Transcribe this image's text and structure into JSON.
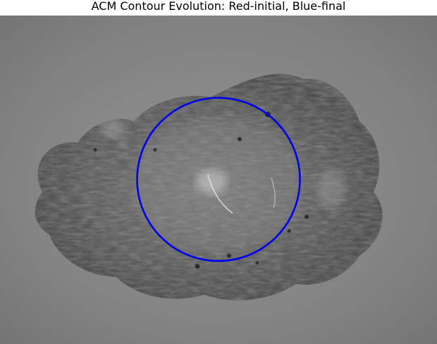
{
  "figure": {
    "title": "ACM Contour Evolution: Red-initial, Blue-final"
  },
  "image": {
    "description_icon": "microscopy-image",
    "background_color": "#7a7a7a",
    "blob_color": "#4a4a4a",
    "contours": [
      {
        "name": "initial",
        "color": "#ff0000",
        "visible": false
      },
      {
        "name": "final",
        "color": "#0000ee",
        "visible": true
      }
    ]
  }
}
